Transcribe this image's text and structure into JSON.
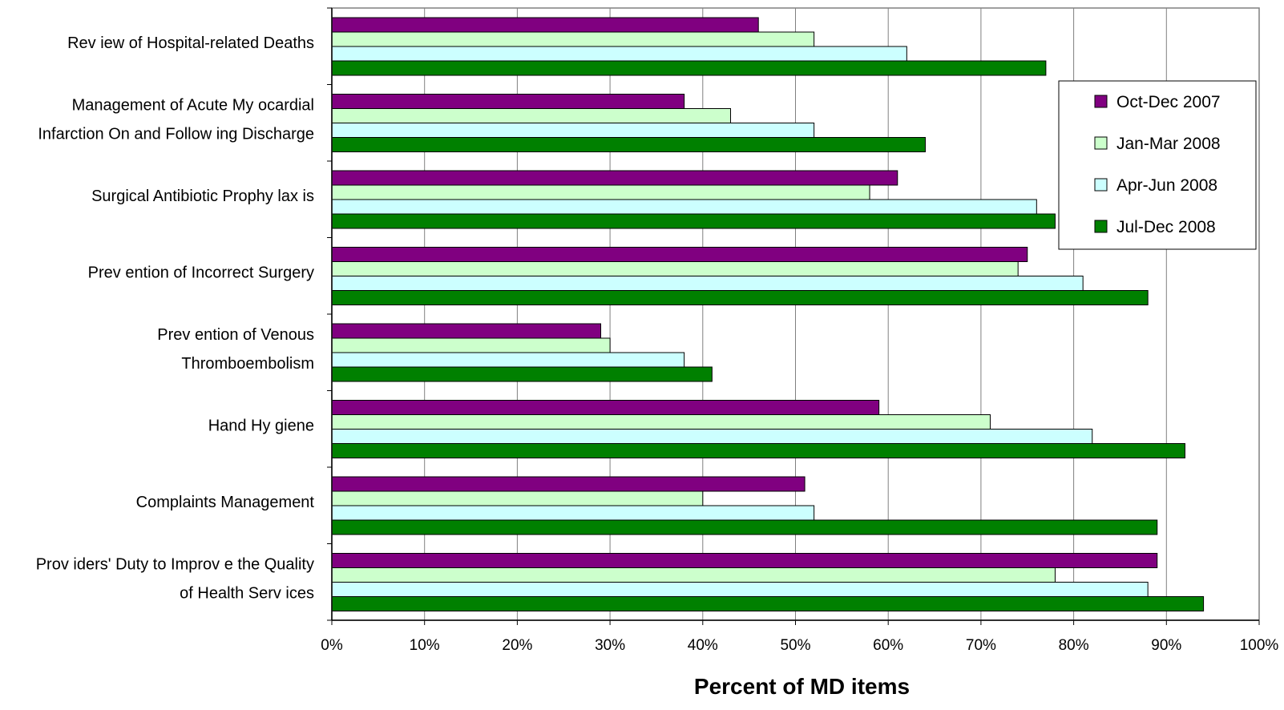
{
  "chart_data": {
    "type": "bar",
    "orientation": "horizontal",
    "categories": [
      [
        "Rev iew  of Hospital-related Deaths"
      ],
      [
        "Management of Acute My ocardial",
        "Infarction On and Follow ing Discharge"
      ],
      [
        "Surgical Antibiotic Prophy lax is"
      ],
      [
        "Prev ention of Incorrect Surgery"
      ],
      [
        "Prev ention of Venous",
        "Thromboembolism"
      ],
      [
        "Hand Hy giene"
      ],
      [
        "Complaints Management"
      ],
      [
        "Prov iders' Duty to Improv e the Quality",
        "of Health Serv ices"
      ]
    ],
    "series": [
      {
        "name": "Oct-Dec 2007",
        "color": "#800080",
        "values": [
          46,
          38,
          61,
          75,
          29,
          59,
          51,
          89
        ]
      },
      {
        "name": "Jan-Mar 2008",
        "color": "#ccffcc",
        "values": [
          52,
          43,
          58,
          74,
          30,
          71,
          40,
          78
        ]
      },
      {
        "name": "Apr-Jun 2008",
        "color": "#ccffff",
        "values": [
          62,
          52,
          76,
          81,
          38,
          82,
          52,
          88
        ]
      },
      {
        "name": "Jul-Dec 2008",
        "color": "#008000",
        "values": [
          77,
          64,
          78,
          88,
          41,
          92,
          89,
          94
        ]
      }
    ],
    "xlim": [
      0,
      100
    ],
    "xticks": [
      "0%",
      "10%",
      "20%",
      "30%",
      "40%",
      "50%",
      "60%",
      "70%",
      "80%",
      "90%",
      "100%"
    ],
    "xlabel": "Percent of MD items",
    "ylabel": "",
    "title": "",
    "grid": "vertical",
    "legend_position": "right"
  }
}
